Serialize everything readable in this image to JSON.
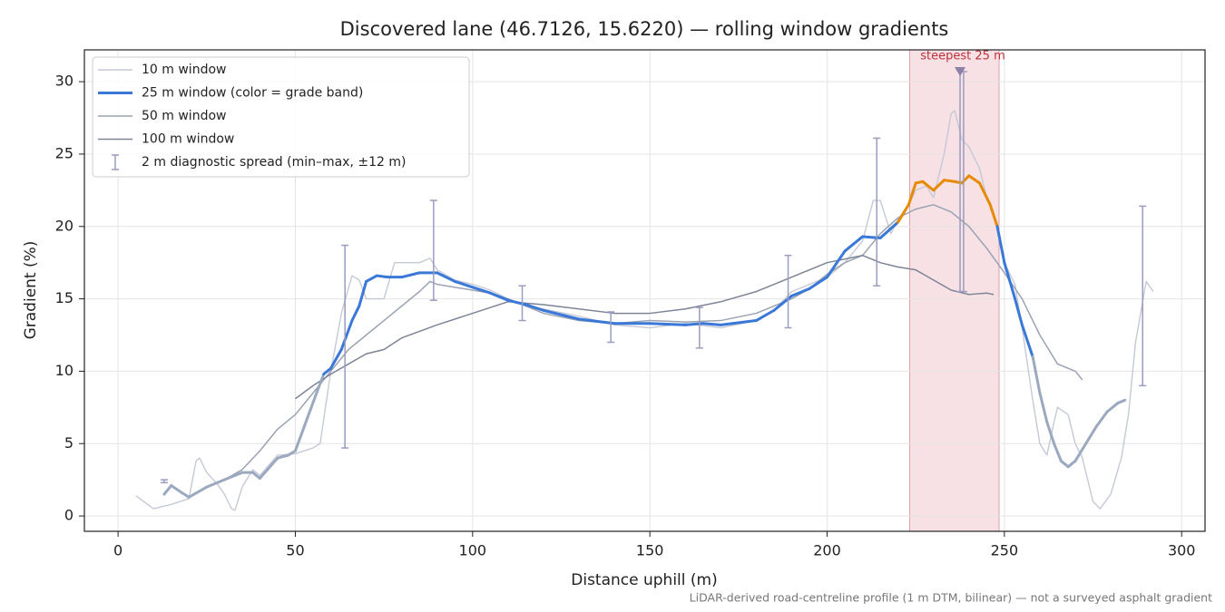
{
  "chart_data": {
    "type": "line",
    "title": "Discovered lane (46.7126, 15.6220) — rolling window gradients",
    "xlabel": "Distance uphill (m)",
    "ylabel": "Gradient (%)",
    "footnote": "LiDAR-derived road-centreline profile (1 m DTM, bilinear) — not a surveyed asphalt gradient",
    "xlim": [
      -9.5,
      306.6
    ],
    "ylim": [
      -1.06,
      32.2
    ],
    "xticks": [
      0,
      50,
      100,
      150,
      200,
      250,
      300
    ],
    "yticks": [
      0,
      5,
      10,
      15,
      20,
      25,
      30
    ],
    "grid": true,
    "legend": "upper left",
    "highlight": {
      "x0": 223.3,
      "x1": 248.5,
      "color": "#f2cdd2"
    },
    "annotation": {
      "text": "steepest 25 m",
      "x": 237.5,
      "y": 30.7,
      "color": "#c0303a",
      "marker_color": "#8c7fa8"
    },
    "series": [
      {
        "name": "10 m window",
        "color": "#c5c9d6",
        "width": 1.4,
        "x": [
          5,
          10,
          15,
          20,
          22,
          23,
          25,
          28,
          30,
          32,
          33,
          35,
          38,
          40,
          45,
          50,
          55,
          57,
          60,
          63,
          66,
          68,
          70,
          75,
          78,
          85,
          88,
          90,
          95,
          100,
          105,
          110,
          115,
          120,
          130,
          140,
          150,
          160,
          170,
          180,
          185,
          190,
          195,
          200,
          205,
          210,
          213,
          215,
          218,
          220,
          223,
          225,
          228,
          230,
          233,
          235,
          236,
          238,
          240,
          243,
          245,
          248,
          250,
          253,
          255,
          258,
          260,
          262,
          264,
          265,
          268,
          270,
          272,
          275,
          277,
          280,
          283,
          285,
          287,
          290,
          292
        ],
        "values": [
          1.4,
          0.5,
          0.8,
          1.2,
          3.8,
          4.0,
          3.0,
          2.2,
          1.5,
          0.5,
          0.4,
          2.0,
          3.2,
          2.8,
          4.2,
          4.3,
          4.7,
          5.0,
          10.0,
          14.0,
          16.6,
          16.3,
          15.0,
          15.0,
          17.5,
          17.5,
          17.8,
          17.0,
          16.3,
          16.0,
          15.6,
          15.0,
          14.5,
          14.3,
          13.8,
          13.2,
          13.0,
          13.3,
          13.0,
          13.5,
          14.2,
          15.5,
          16.0,
          16.5,
          17.5,
          19.0,
          21.8,
          21.8,
          19.5,
          20.5,
          21.5,
          22.5,
          22.8,
          22.0,
          25.0,
          27.8,
          28.0,
          26.0,
          25.5,
          24.0,
          22.0,
          20.0,
          17.5,
          16.0,
          13.0,
          8.0,
          5.0,
          4.2,
          6.5,
          7.5,
          7.0,
          5.0,
          4.0,
          1.0,
          0.5,
          1.5,
          4.0,
          7.0,
          12.0,
          16.2,
          15.5
        ]
      },
      {
        "name": "25 m window (color = grade band)",
        "color": "#3a78d8",
        "width": 3,
        "bands": [
          {
            "below": 10,
            "color": "#9aa9bf"
          },
          {
            "below": 20,
            "color": "#3a78d8"
          },
          {
            "below": 100,
            "color": "#e68a00"
          }
        ],
        "x": [
          13,
          15,
          18,
          20,
          25,
          30,
          35,
          38,
          40,
          45,
          48,
          50,
          53,
          56,
          58,
          60,
          63,
          66,
          68,
          70,
          73,
          76,
          80,
          85,
          90,
          95,
          100,
          105,
          110,
          115,
          120,
          130,
          140,
          150,
          160,
          165,
          170,
          180,
          185,
          190,
          195,
          200,
          205,
          210,
          215,
          220,
          223,
          225,
          227,
          230,
          233,
          236,
          238,
          240,
          243,
          246,
          248,
          250,
          253,
          255,
          258,
          260,
          262,
          264,
          266,
          268,
          270,
          273,
          276,
          279,
          282,
          284
        ],
        "values": [
          1.5,
          2.1,
          1.6,
          1.3,
          2.0,
          2.5,
          3.0,
          3.0,
          2.6,
          4.0,
          4.2,
          4.5,
          6.5,
          8.5,
          9.8,
          10.2,
          11.5,
          13.5,
          14.5,
          16.2,
          16.6,
          16.5,
          16.5,
          16.8,
          16.8,
          16.2,
          15.8,
          15.4,
          14.9,
          14.6,
          14.2,
          13.6,
          13.3,
          13.3,
          13.2,
          13.3,
          13.2,
          13.5,
          14.2,
          15.2,
          15.7,
          16.5,
          18.3,
          19.3,
          19.2,
          20.3,
          21.5,
          23.0,
          23.1,
          22.5,
          23.2,
          23.1,
          23.0,
          23.5,
          23.0,
          21.5,
          20.0,
          17.5,
          15.0,
          13.2,
          11.0,
          8.5,
          6.5,
          5.0,
          3.8,
          3.4,
          3.8,
          5.0,
          6.2,
          7.2,
          7.8,
          8.0
        ]
      },
      {
        "name": "50 m window",
        "color": "#9aa2b4",
        "width": 1.5,
        "x": [
          30,
          35,
          40,
          45,
          50,
          55,
          60,
          65,
          70,
          75,
          80,
          85,
          88,
          90,
          95,
          100,
          105,
          110,
          115,
          120,
          130,
          140,
          150,
          160,
          170,
          180,
          190,
          195,
          200,
          205,
          210,
          215,
          220,
          225,
          230,
          235,
          240,
          245,
          250,
          255,
          260,
          265,
          270,
          272
        ],
        "values": [
          2.5,
          3.2,
          4.5,
          6.0,
          7.0,
          8.5,
          10.0,
          11.5,
          12.5,
          13.5,
          14.5,
          15.5,
          16.2,
          16.0,
          15.8,
          15.6,
          15.4,
          15.0,
          14.5,
          14.0,
          13.5,
          13.3,
          13.5,
          13.4,
          13.5,
          14.0,
          15.0,
          15.7,
          16.7,
          17.5,
          18.0,
          19.5,
          20.6,
          21.2,
          21.5,
          21.0,
          20.0,
          18.5,
          16.8,
          15.0,
          12.5,
          10.5,
          10.0,
          9.4
        ]
      },
      {
        "name": "100 m window",
        "color": "#7c8496",
        "width": 1.5,
        "x": [
          50,
          55,
          60,
          65,
          70,
          75,
          80,
          90,
          100,
          110,
          120,
          130,
          140,
          150,
          160,
          170,
          180,
          190,
          200,
          210,
          215,
          220,
          225,
          230,
          235,
          240,
          245,
          247
        ],
        "values": [
          8.1,
          9.0,
          9.8,
          10.5,
          11.2,
          11.5,
          12.3,
          13.2,
          14.0,
          14.8,
          14.6,
          14.3,
          14.0,
          14.0,
          14.3,
          14.8,
          15.5,
          16.5,
          17.5,
          18.0,
          17.5,
          17.2,
          17.0,
          16.3,
          15.6,
          15.3,
          15.4,
          15.3
        ]
      }
    ],
    "error_bars": {
      "name": "2 m diagnostic spread (min–max, ±12 m)",
      "color": "#9a9cc0",
      "x": [
        13,
        64,
        89,
        114,
        139,
        164,
        189,
        214,
        237.5,
        238.5,
        289
      ],
      "low": [
        2.3,
        4.7,
        14.9,
        13.5,
        12.0,
        11.6,
        13.0,
        15.9,
        15.5,
        15.5,
        9.0
      ],
      "high": [
        2.5,
        18.7,
        21.8,
        15.9,
        14.1,
        14.4,
        18.0,
        26.1,
        30.8,
        30.7,
        21.4
      ]
    }
  }
}
